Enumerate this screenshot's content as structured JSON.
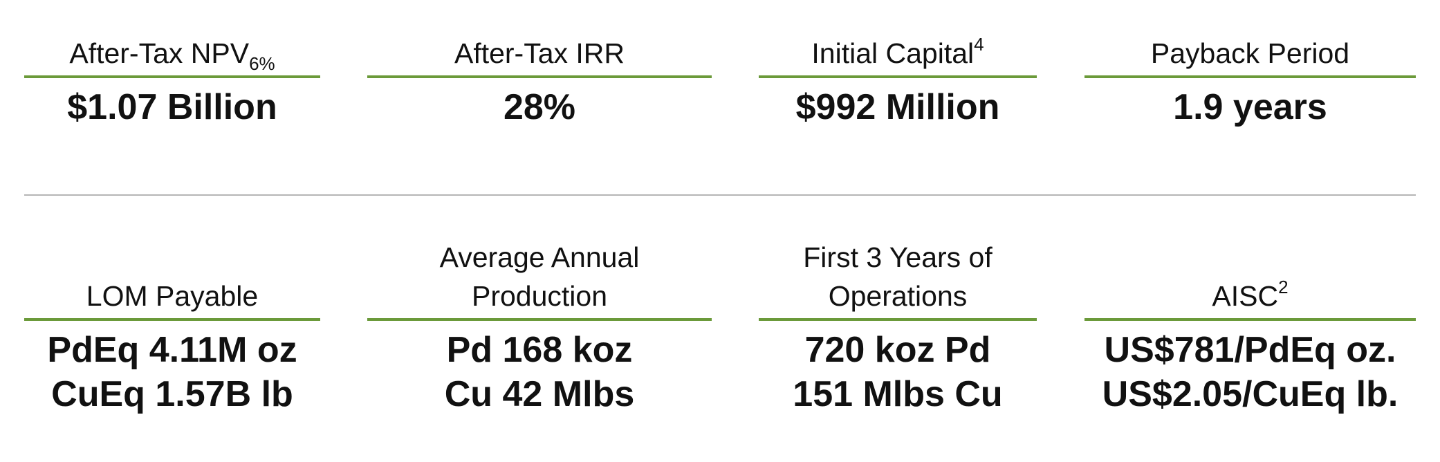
{
  "theme": {
    "accent_color": "#6b9a3a",
    "divider_color": "#b5b5b5",
    "text_color": "#111111"
  },
  "metrics_top": [
    {
      "label_main": "After-Tax NPV",
      "label_subscript": "6%",
      "label_superscript": "",
      "value_lines": [
        "$1.07 Billion"
      ]
    },
    {
      "label_main": "After-Tax IRR",
      "label_subscript": "",
      "label_superscript": "",
      "value_lines": [
        "28%"
      ]
    },
    {
      "label_main": "Initial Capital",
      "label_subscript": "",
      "label_superscript": "4",
      "value_lines": [
        "$992 Million"
      ]
    },
    {
      "label_main": "Payback Period",
      "label_subscript": "",
      "label_superscript": "",
      "value_lines": [
        "1.9 years"
      ]
    }
  ],
  "metrics_bottom": [
    {
      "label_lines": [
        "LOM Payable"
      ],
      "label_superscript": "",
      "value_lines": [
        "PdEq 4.11M oz",
        "CuEq 1.57B lb"
      ]
    },
    {
      "label_lines": [
        "Average Annual",
        "Production"
      ],
      "label_superscript": "",
      "value_lines": [
        "Pd 168 koz",
        "Cu 42 Mlbs"
      ]
    },
    {
      "label_lines": [
        "First 3 Years of",
        "Operations"
      ],
      "label_superscript": "",
      "value_lines": [
        "720 koz Pd",
        "151 Mlbs Cu"
      ]
    },
    {
      "label_lines": [
        "AISC"
      ],
      "label_superscript": "2",
      "value_lines": [
        "US$781/PdEq oz.",
        "US$2.05/CuEq lb."
      ]
    }
  ]
}
